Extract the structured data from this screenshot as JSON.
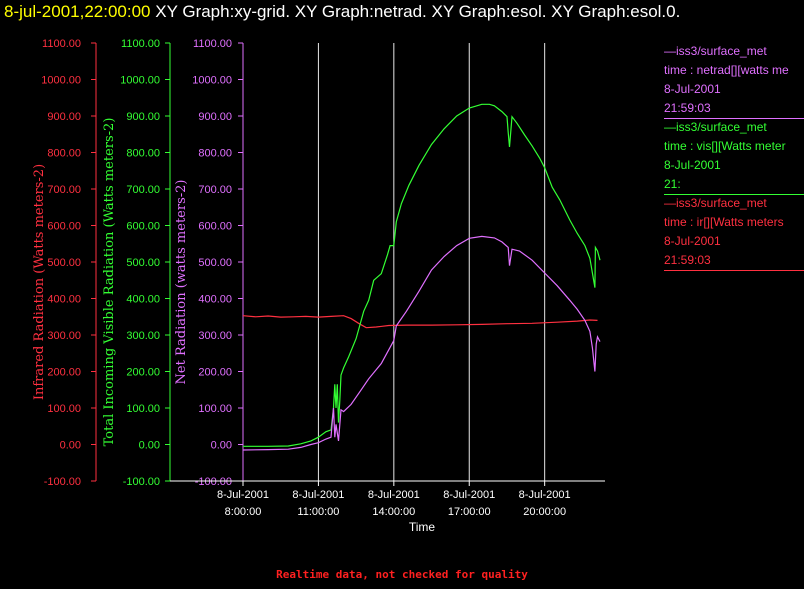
{
  "header": {
    "timestamp": "8-jul-2001,22:00:00",
    "graphs_text": "XY Graph:xy-grid.  XY Graph:netrad.  XY Graph:esol.  XY Graph:esol.0."
  },
  "colors": {
    "infrared": "#ff3040",
    "visible": "#33ff33",
    "net": "#e070ff",
    "axis_text": "#ffffff",
    "timestamp": "#ffff00",
    "footer": "#ff2020"
  },
  "legend": [
    {
      "source": "—iss3/surface_met",
      "var": "time : netrad[][watts me",
      "date": "8-Jul-2001",
      "time": "21:59:03",
      "color": "#e070ff"
    },
    {
      "source": "—iss3/surface_met",
      "var": "time : vis[][Watts meter",
      "date": "8-Jul-2001",
      "time": "21:",
      "color": "#33ff33"
    },
    {
      "source": "—iss3/surface_met",
      "var": "time : ir[][Watts meters",
      "date": "8-Jul-2001",
      "time": "21:59:03",
      "color": "#ff3040"
    }
  ],
  "footer_note": "Realtime data, not checked for quality",
  "chart_data": {
    "type": "line",
    "xlabel": "Time",
    "x_ticks": [
      {
        "hour": 8,
        "date": "8-Jul-2001",
        "time": "8:00:00"
      },
      {
        "hour": 11,
        "date": "8-Jul-2001",
        "time": "11:00:00"
      },
      {
        "hour": 14,
        "date": "8-Jul-2001",
        "time": "14:00:00"
      },
      {
        "hour": 17,
        "date": "8-Jul-2001",
        "time": "17:00:00"
      },
      {
        "hour": 20,
        "date": "8-Jul-2001",
        "time": "20:00:00"
      }
    ],
    "x_range_hours": [
      8,
      22.4
    ],
    "vertical_grid": true,
    "axes": [
      {
        "label": "Infrared Radiation (Watts meters-2)",
        "color": "#ff3040",
        "ylim": [
          -100,
          1100
        ]
      },
      {
        "label": "Total Incoming Visible Radiation (Watts meters-2)",
        "color": "#33ff33",
        "ylim": [
          -100,
          1100
        ]
      },
      {
        "label": "Net Radiation (watts meters-2)",
        "color": "#e070ff",
        "ylim": [
          -100,
          1100
        ]
      }
    ],
    "y_ticks": [
      "-100.00",
      "0.00",
      "100.00",
      "200.00",
      "300.00",
      "400.00",
      "500.00",
      "600.00",
      "700.00",
      "800.00",
      "900.00",
      "1000.00",
      "1100.00"
    ],
    "series": [
      {
        "name": "time : ir[][Watts meters",
        "color": "#ff3040",
        "points": [
          [
            8.0,
            353
          ],
          [
            8.5,
            350
          ],
          [
            9.0,
            352
          ],
          [
            9.5,
            349
          ],
          [
            10.0,
            350
          ],
          [
            10.5,
            351
          ],
          [
            11.0,
            349
          ],
          [
            11.5,
            351
          ],
          [
            12.0,
            353
          ],
          [
            12.3,
            345
          ],
          [
            12.6,
            332
          ],
          [
            12.9,
            320
          ],
          [
            13.3,
            322
          ],
          [
            13.8,
            326
          ],
          [
            14.5,
            327
          ],
          [
            15.5,
            327
          ],
          [
            16.5,
            328
          ],
          [
            17.5,
            329
          ],
          [
            18.5,
            331
          ],
          [
            19.5,
            332
          ],
          [
            20.5,
            335
          ],
          [
            21.3,
            338
          ],
          [
            21.8,
            341
          ],
          [
            22.1,
            340
          ]
        ]
      },
      {
        "name": "time : vis[][Watts meter",
        "color": "#33ff33",
        "points": [
          [
            8.0,
            -5
          ],
          [
            9.0,
            -5
          ],
          [
            9.8,
            -4
          ],
          [
            10.3,
            2
          ],
          [
            10.7,
            10
          ],
          [
            11.0,
            20
          ],
          [
            11.3,
            35
          ],
          [
            11.5,
            40
          ],
          [
            11.6,
            100
          ],
          [
            11.65,
            165
          ],
          [
            11.7,
            100
          ],
          [
            11.75,
            165
          ],
          [
            11.8,
            60
          ],
          [
            11.85,
            120
          ],
          [
            11.9,
            190
          ],
          [
            12.0,
            210
          ],
          [
            12.2,
            240
          ],
          [
            12.5,
            290
          ],
          [
            12.8,
            365
          ],
          [
            13.0,
            395
          ],
          [
            13.2,
            450
          ],
          [
            13.5,
            468
          ],
          [
            13.75,
            520
          ],
          [
            13.85,
            545
          ],
          [
            14.0,
            545
          ],
          [
            14.1,
            610
          ],
          [
            14.3,
            660
          ],
          [
            14.6,
            710
          ],
          [
            15.0,
            765
          ],
          [
            15.5,
            822
          ],
          [
            16.0,
            865
          ],
          [
            16.5,
            900
          ],
          [
            17.0,
            922
          ],
          [
            17.5,
            932
          ],
          [
            17.8,
            932
          ],
          [
            18.0,
            928
          ],
          [
            18.3,
            912
          ],
          [
            18.5,
            898
          ],
          [
            18.55,
            855
          ],
          [
            18.6,
            815
          ],
          [
            18.7,
            898
          ],
          [
            18.9,
            880
          ],
          [
            19.2,
            848
          ],
          [
            19.5,
            818
          ],
          [
            19.8,
            785
          ],
          [
            20.0,
            758
          ],
          [
            20.3,
            705
          ],
          [
            20.6,
            670
          ],
          [
            21.0,
            615
          ],
          [
            21.3,
            578
          ],
          [
            21.6,
            545
          ],
          [
            21.8,
            510
          ],
          [
            21.9,
            470
          ],
          [
            22.0,
            430
          ],
          [
            22.02,
            540
          ],
          [
            22.1,
            530
          ],
          [
            22.2,
            505
          ]
        ]
      },
      {
        "name": "time : netrad[][watts me",
        "color": "#e070ff",
        "points": [
          [
            8.0,
            -15
          ],
          [
            9.0,
            -14
          ],
          [
            9.8,
            -13
          ],
          [
            10.3,
            -8
          ],
          [
            10.7,
            0
          ],
          [
            11.0,
            5
          ],
          [
            11.3,
            15
          ],
          [
            11.5,
            20
          ],
          [
            11.55,
            60
          ],
          [
            11.6,
            100
          ],
          [
            11.65,
            20
          ],
          [
            11.7,
            55
          ],
          [
            11.8,
            10
          ],
          [
            11.9,
            95
          ],
          [
            12.0,
            90
          ],
          [
            12.3,
            110
          ],
          [
            12.7,
            150
          ],
          [
            13.0,
            180
          ],
          [
            13.5,
            222
          ],
          [
            14.0,
            285
          ],
          [
            14.1,
            325
          ],
          [
            14.5,
            365
          ],
          [
            15.0,
            420
          ],
          [
            15.5,
            478
          ],
          [
            16.0,
            515
          ],
          [
            16.5,
            545
          ],
          [
            17.0,
            565
          ],
          [
            17.5,
            570
          ],
          [
            18.0,
            566
          ],
          [
            18.3,
            555
          ],
          [
            18.55,
            540
          ],
          [
            18.6,
            490
          ],
          [
            18.7,
            535
          ],
          [
            19.0,
            530
          ],
          [
            19.5,
            505
          ],
          [
            20.0,
            470
          ],
          [
            20.5,
            435
          ],
          [
            21.0,
            395
          ],
          [
            21.3,
            370
          ],
          [
            21.6,
            340
          ],
          [
            21.8,
            310
          ],
          [
            21.9,
            265
          ],
          [
            22.0,
            200
          ],
          [
            22.05,
            275
          ],
          [
            22.1,
            295
          ],
          [
            22.2,
            282
          ]
        ]
      }
    ]
  }
}
